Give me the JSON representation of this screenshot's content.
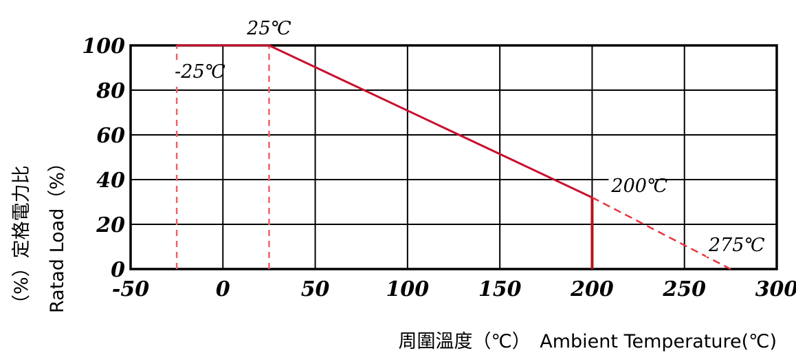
{
  "chart_data": {
    "type": "line",
    "title": "",
    "xlabel": "周圍溫度（℃）　Ambient Temperature(℃)",
    "ylabel_zh": "（%）定格電力比",
    "ylabel_en": "Ratad Load（%）",
    "xlim": [
      -50,
      300
    ],
    "ylim": [
      0,
      100
    ],
    "x_ticks": [
      -50,
      0,
      50,
      100,
      150,
      200,
      250,
      300
    ],
    "y_ticks": [
      0,
      20,
      40,
      60,
      80,
      100
    ],
    "grid": true,
    "series": [
      {
        "style": "solid",
        "color": "#c8102e",
        "x": [
          -25,
          25,
          200
        ],
        "y": [
          100,
          100,
          32
        ]
      },
      {
        "style": "dashed",
        "color": "#e8323c",
        "x": [
          200,
          275
        ],
        "y": [
          32,
          0
        ]
      }
    ],
    "vertical_lines": [
      {
        "x": -25,
        "y_range": [
          0,
          100
        ],
        "style": "dashed"
      },
      {
        "x": 25,
        "y_range": [
          0,
          100
        ],
        "style": "dashed"
      },
      {
        "x": 200,
        "y_range": [
          0,
          32
        ],
        "style": "solid"
      }
    ],
    "annotations": [
      {
        "text": "25℃",
        "x": 25,
        "y": 100
      },
      {
        "text": "-25℃",
        "x": -25,
        "y": 100
      },
      {
        "text": "200℃",
        "x": 200,
        "y": 32
      },
      {
        "text": "275℃",
        "x": 275,
        "y": 0
      }
    ]
  }
}
